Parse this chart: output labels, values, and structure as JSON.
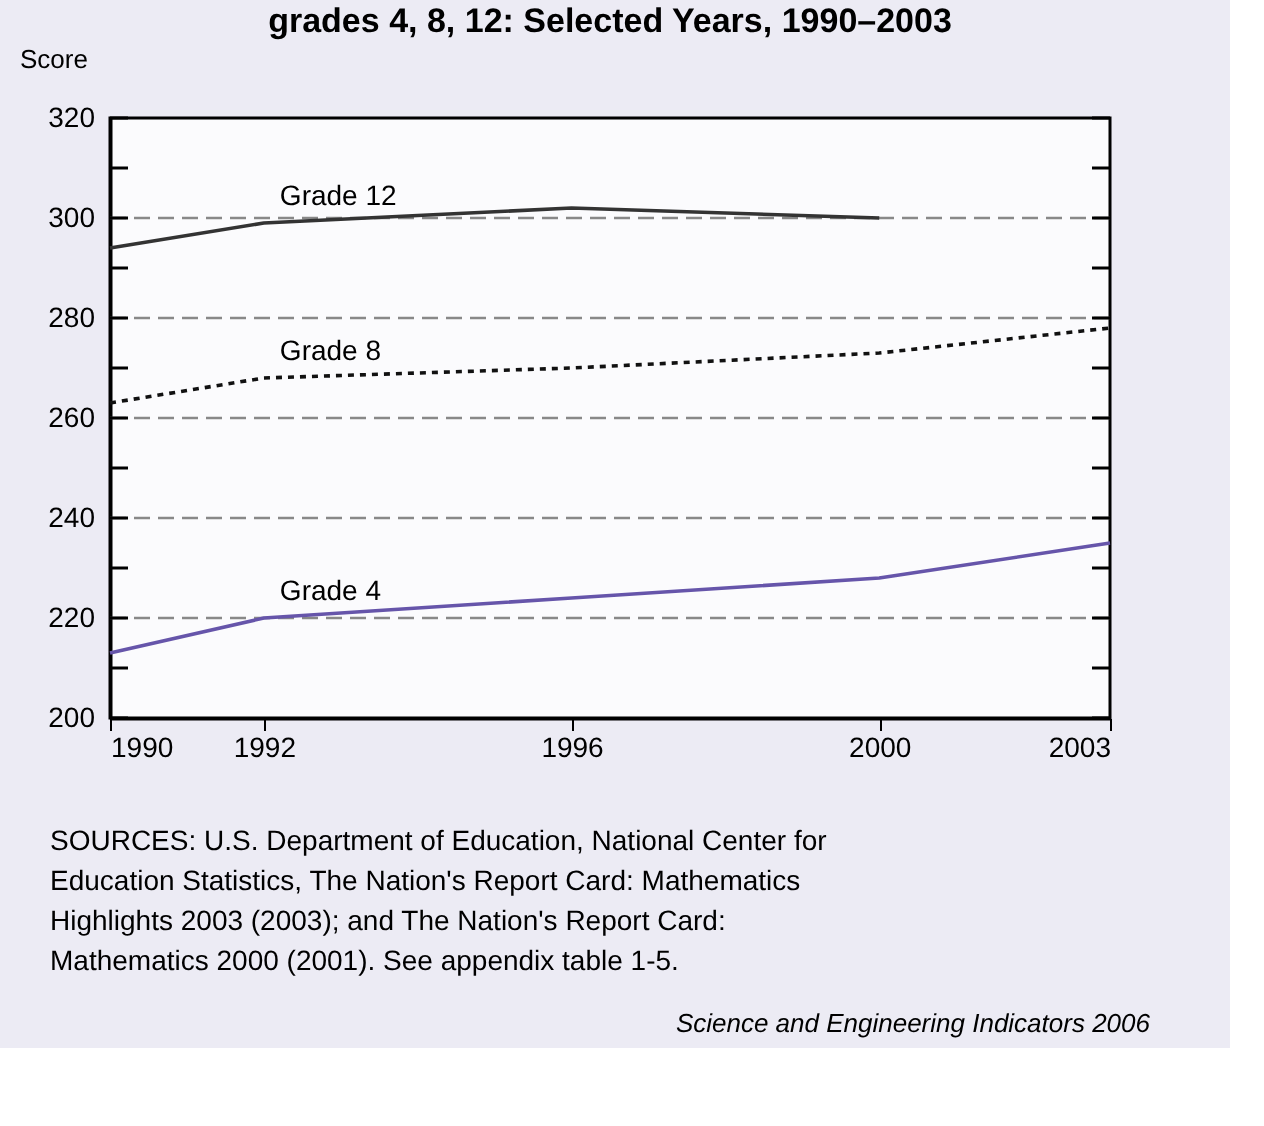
{
  "chart_data": {
    "type": "line",
    "title": "grades 4, 8, 12: Selected Years, 1990–2003",
    "ylabel": "Score",
    "x": [
      1990,
      1992,
      1996,
      2000,
      2003
    ],
    "series": [
      {
        "name": "Grade 12",
        "color": "#333333",
        "line_style": "solid",
        "x": [
          1990,
          1992,
          1996,
          2000
        ],
        "values": [
          294,
          299,
          302,
          300
        ]
      },
      {
        "name": "Grade 8",
        "color": "#111111",
        "line_style": "dotted",
        "values": [
          263,
          268,
          270,
          273,
          278
        ]
      },
      {
        "name": "Grade 4",
        "color": "#6655aa",
        "line_style": "solid",
        "values": [
          213,
          220,
          224,
          228,
          235
        ]
      }
    ],
    "xlim": [
      1990,
      2003
    ],
    "xticks": [
      1990,
      1992,
      1996,
      2000,
      2003
    ],
    "ylim": [
      200,
      320
    ],
    "yticks": [
      200,
      {
        "value": 210,
        "label": null
      },
      220,
      {
        "value": 230,
        "label": null
      },
      240,
      {
        "value": 250,
        "label": null
      },
      260,
      {
        "value": 270,
        "label": null
      },
      280,
      {
        "value": 290,
        "label": null
      },
      300,
      {
        "value": 310,
        "label": null
      },
      320
    ],
    "grid": "y",
    "marker": "none",
    "annotations": [
      "SOURCES: U.S. Department of Education, National Center for Education Statistics, The Nation's Report Card: Mathematics Highlights 2003 (2003); and The Nation's Report Card: Mathematics 2000 (2001). See appendix table 1-5.",
      "Science and Engineering Indicators 2006"
    ]
  }
}
